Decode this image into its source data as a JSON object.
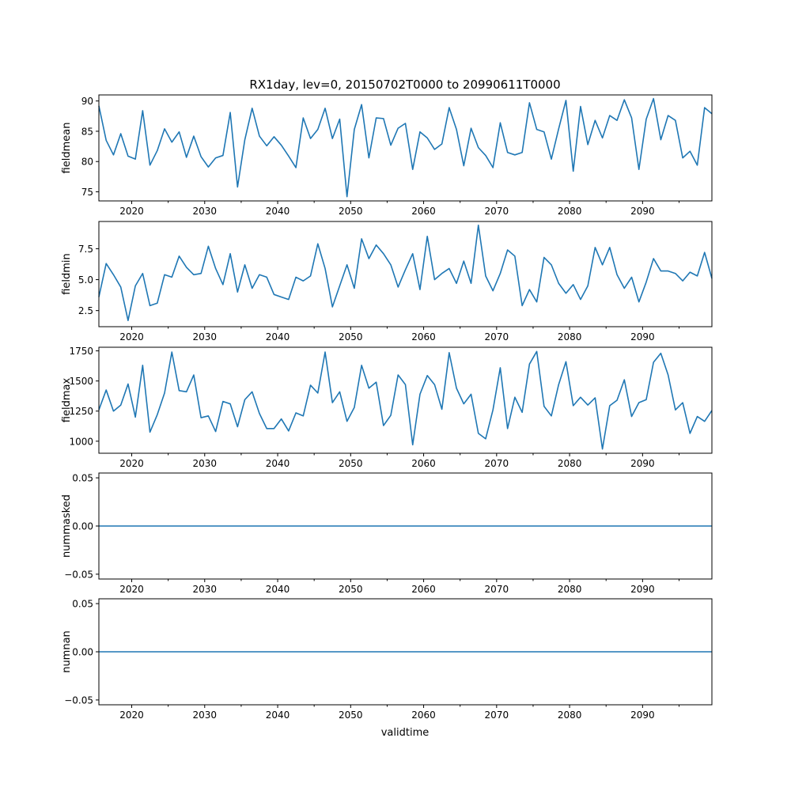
{
  "chart_data": {
    "type": "line",
    "title": "RX1day, lev=0, 20150702T0000 to 20990611T0000",
    "xlabel": "validtime",
    "line_color": "#1f77b4",
    "xlim": [
      2015.5,
      2099.5
    ],
    "xticks": [
      2020,
      2030,
      2040,
      2050,
      2060,
      2070,
      2080,
      2090
    ],
    "x_start": 2015.5,
    "panels": [
      {
        "ylabel": "fieldmean",
        "ylim": [
          73.5,
          91.0
        ],
        "yticks": [
          75,
          80,
          85,
          90
        ],
        "ytick_labels": [
          "75",
          "80",
          "85",
          "90"
        ],
        "values": [
          89.2,
          83.5,
          81.1,
          84.6,
          80.9,
          80.4,
          88.4,
          79.4,
          81.8,
          85.4,
          83.2,
          84.9,
          80.7,
          84.2,
          80.8,
          79.1,
          80.6,
          81.0,
          88.1,
          75.8,
          83.6,
          88.8,
          84.2,
          82.6,
          84.1,
          82.7,
          80.9,
          79.0,
          87.2,
          83.8,
          85.3,
          88.8,
          83.8,
          87.0,
          74.2,
          85.3,
          89.4,
          80.6,
          87.2,
          87.1,
          82.7,
          85.5,
          86.3,
          78.7,
          84.9,
          83.9,
          82.0,
          82.9,
          88.9,
          85.3,
          79.3,
          85.5,
          82.3,
          81.0,
          79.0,
          86.4,
          81.5,
          81.1,
          81.5,
          89.7,
          85.3,
          84.9,
          80.4,
          85.4,
          90.1,
          78.4,
          89.1,
          82.8,
          86.8,
          83.9,
          87.6,
          86.8,
          90.2,
          87.2,
          78.7,
          87.0,
          90.4,
          83.6,
          87.6,
          86.8,
          80.6,
          81.7,
          79.4,
          88.9,
          87.9
        ]
      },
      {
        "ylabel": "fieldmin",
        "ylim": [
          1.2,
          9.7
        ],
        "yticks": [
          2.5,
          5.0,
          7.5
        ],
        "ytick_labels": [
          "2.5",
          "5.0",
          "7.5"
        ],
        "values": [
          3.6,
          6.3,
          5.4,
          4.4,
          1.7,
          4.5,
          5.5,
          2.9,
          3.1,
          5.4,
          5.2,
          6.9,
          6.0,
          5.4,
          5.5,
          7.7,
          5.9,
          4.6,
          7.1,
          4.0,
          6.2,
          4.3,
          5.4,
          5.2,
          3.8,
          3.6,
          3.4,
          5.2,
          4.9,
          5.3,
          7.9,
          5.9,
          2.8,
          4.5,
          6.2,
          4.3,
          8.3,
          6.7,
          7.8,
          7.1,
          6.2,
          4.4,
          5.8,
          7.1,
          4.2,
          8.5,
          5.0,
          5.5,
          5.9,
          4.7,
          6.5,
          4.7,
          9.4,
          5.3,
          4.1,
          5.5,
          7.4,
          6.9,
          2.9,
          4.2,
          3.2,
          6.8,
          6.2,
          4.7,
          3.9,
          4.6,
          3.4,
          4.5,
          7.6,
          6.2,
          7.6,
          5.4,
          4.3,
          5.2,
          3.2,
          4.8,
          6.7,
          5.7,
          5.7,
          5.5,
          4.9,
          5.6,
          5.3,
          7.2,
          5.1
        ]
      },
      {
        "ylabel": "fieldmax",
        "ylim": [
          900,
          1780
        ],
        "yticks": [
          1000,
          1250,
          1500,
          1750
        ],
        "ytick_labels": [
          "1000",
          "1250",
          "1500",
          "1750"
        ],
        "values": [
          1260,
          1425,
          1250,
          1300,
          1475,
          1200,
          1630,
          1075,
          1220,
          1400,
          1740,
          1420,
          1410,
          1550,
          1195,
          1210,
          1080,
          1330,
          1310,
          1120,
          1345,
          1410,
          1230,
          1105,
          1105,
          1185,
          1085,
          1235,
          1210,
          1465,
          1400,
          1740,
          1320,
          1410,
          1165,
          1280,
          1630,
          1440,
          1490,
          1130,
          1215,
          1550,
          1470,
          970,
          1390,
          1545,
          1470,
          1265,
          1735,
          1440,
          1310,
          1390,
          1065,
          1020,
          1260,
          1610,
          1105,
          1365,
          1240,
          1640,
          1745,
          1290,
          1210,
          1470,
          1660,
          1295,
          1365,
          1300,
          1360,
          935,
          1295,
          1340,
          1510,
          1205,
          1320,
          1345,
          1655,
          1730,
          1550,
          1260,
          1320,
          1065,
          1205,
          1165,
          1255
        ]
      },
      {
        "ylabel": "nummasked",
        "ylim": [
          -0.055,
          0.055
        ],
        "yticks": [
          -0.05,
          0.0,
          0.05
        ],
        "ytick_labels": [
          "−0.05",
          "0.00",
          "0.05"
        ],
        "constant": 0.0
      },
      {
        "ylabel": "numnan",
        "ylim": [
          -0.055,
          0.055
        ],
        "yticks": [
          -0.05,
          0.0,
          0.05
        ],
        "ytick_labels": [
          "−0.05",
          "0.00",
          "0.05"
        ],
        "constant": 0.0
      }
    ]
  }
}
